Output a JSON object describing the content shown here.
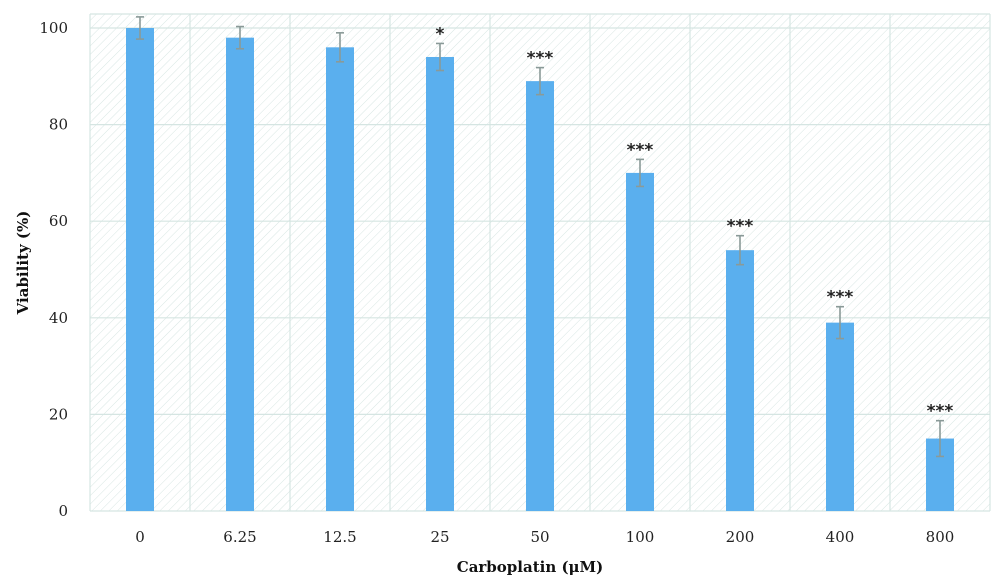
{
  "chart_data": {
    "type": "bar",
    "categories": [
      "0",
      "6.25",
      "12.5",
      "25",
      "50",
      "100",
      "200",
      "400",
      "800"
    ],
    "values": [
      100,
      98,
      96,
      94,
      89,
      70,
      54,
      39,
      15
    ],
    "errors": [
      2.3,
      2.3,
      3,
      2.8,
      2.8,
      2.8,
      3,
      3.3,
      3.7
    ],
    "significance": [
      "",
      "",
      "",
      "*",
      "***",
      "***",
      "***",
      "***",
      "***"
    ],
    "xlabel": "Carboplatin (μM)",
    "ylabel": "Viability (%)",
    "ylim": [
      0,
      100
    ],
    "yticks": [
      "0",
      "20",
      "40",
      "60",
      "80",
      "100"
    ],
    "ytick_values": [
      0,
      20,
      40,
      60,
      80,
      100
    ],
    "grid": true,
    "colors": {
      "bar": "#5aafee",
      "error_bar": "#8a9a98",
      "grid": "#d5e5e2",
      "hatch": "#d8e6e3"
    }
  }
}
